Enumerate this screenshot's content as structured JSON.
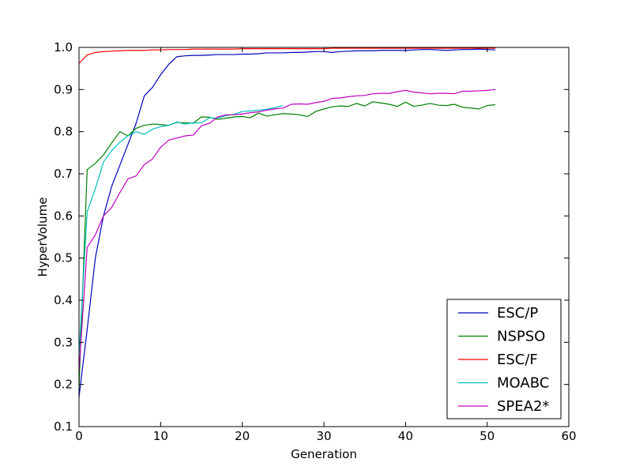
{
  "chart_data": {
    "type": "line",
    "xlabel": "Generation",
    "ylabel": "HyperVolume",
    "xlim": [
      0,
      60
    ],
    "ylim": [
      0.1,
      1.0
    ],
    "xticks": [
      "0",
      "10",
      "20",
      "30",
      "40",
      "50",
      "60"
    ],
    "yticks": [
      "0.1",
      "0.2",
      "0.3",
      "0.4",
      "0.5",
      "0.6",
      "0.7",
      "0.8",
      "0.9",
      "1.0"
    ],
    "grid": false,
    "legend_position": "lower-right",
    "series": [
      {
        "name": "ESC/P",
        "color": "#0000bf",
        "x": [
          0,
          1,
          2,
          3,
          4,
          5,
          6,
          7,
          8,
          9,
          10,
          11,
          12,
          13,
          14,
          15,
          16,
          17,
          18,
          19,
          20,
          21,
          22,
          23,
          24,
          25,
          26,
          27,
          28,
          29,
          30,
          31,
          32,
          33,
          34,
          35,
          36,
          37,
          38,
          39,
          40,
          41,
          42,
          43,
          44,
          45,
          46,
          47,
          48,
          49,
          50,
          51
        ],
        "y": [
          0.17,
          0.33,
          0.5,
          0.6,
          0.67,
          0.72,
          0.77,
          0.82,
          0.885,
          0.905,
          0.935,
          0.96,
          0.978,
          0.98,
          0.981,
          0.981,
          0.982,
          0.983,
          0.983,
          0.983,
          0.984,
          0.984,
          0.985,
          0.987,
          0.987,
          0.987,
          0.988,
          0.988,
          0.989,
          0.99,
          0.99,
          0.988,
          0.99,
          0.991,
          0.992,
          0.992,
          0.992,
          0.993,
          0.993,
          0.993,
          0.993,
          0.994,
          0.995,
          0.995,
          0.994,
          0.993,
          0.994,
          0.995,
          0.995,
          0.996,
          0.995,
          0.994
        ]
      },
      {
        "name": "NSPSO",
        "color": "#008000",
        "x": [
          0,
          1,
          2,
          3,
          4,
          5,
          6,
          7,
          8,
          9,
          10,
          11,
          12,
          13,
          14,
          15,
          16,
          17,
          18,
          19,
          20,
          21,
          22,
          23,
          24,
          25,
          26,
          27,
          28,
          29,
          30,
          31,
          32,
          33,
          34,
          35,
          36,
          37,
          38,
          39,
          40,
          41,
          42,
          43,
          44,
          45,
          46,
          47,
          48,
          49,
          50,
          51
        ],
        "y": [
          0.19,
          0.71,
          0.725,
          0.745,
          0.773,
          0.8,
          0.79,
          0.808,
          0.815,
          0.818,
          0.817,
          0.815,
          0.822,
          0.821,
          0.82,
          0.835,
          0.834,
          0.829,
          0.832,
          0.835,
          0.836,
          0.833,
          0.844,
          0.837,
          0.84,
          0.843,
          0.842,
          0.84,
          0.836,
          0.848,
          0.854,
          0.859,
          0.861,
          0.86,
          0.867,
          0.861,
          0.871,
          0.868,
          0.865,
          0.86,
          0.87,
          0.86,
          0.863,
          0.867,
          0.863,
          0.862,
          0.865,
          0.858,
          0.856,
          0.854,
          0.862,
          0.864
        ]
      },
      {
        "name": "ESC/F",
        "color": "#ff0000",
        "x": [
          0,
          1,
          2,
          3,
          4,
          5,
          6,
          7,
          8,
          9,
          10,
          11,
          12,
          13,
          14,
          15,
          16,
          17,
          18,
          19,
          20,
          21,
          22,
          23,
          24,
          25,
          26,
          27,
          28,
          29,
          30,
          31,
          32,
          33,
          34,
          35,
          36,
          37,
          38,
          39,
          40,
          41,
          42,
          43,
          44,
          45,
          46,
          47,
          48,
          49,
          50,
          51
        ],
        "y": [
          0.962,
          0.982,
          0.988,
          0.99,
          0.991,
          0.992,
          0.993,
          0.993,
          0.993,
          0.994,
          0.994,
          0.995,
          0.995,
          0.995,
          0.996,
          0.996,
          0.996,
          0.996,
          0.996,
          0.996,
          0.997,
          0.997,
          0.997,
          0.997,
          0.997,
          0.997,
          0.997,
          0.997,
          0.997,
          0.997,
          0.997,
          0.998,
          0.998,
          0.998,
          0.998,
          0.998,
          0.998,
          0.998,
          0.998,
          0.998,
          0.998,
          0.998,
          0.998,
          0.998,
          0.998,
          0.998,
          0.998,
          0.998,
          0.998,
          0.998,
          0.998,
          0.998
        ]
      },
      {
        "name": "MOABC",
        "color": "#00bfbf",
        "x": [
          0,
          1,
          2,
          3,
          4,
          5,
          6,
          7,
          8,
          9,
          10,
          11,
          12,
          13,
          14,
          15,
          16,
          17,
          18,
          19,
          20,
          21,
          22,
          23,
          24,
          25
        ],
        "y": [
          0.27,
          0.61,
          0.665,
          0.728,
          0.755,
          0.775,
          0.79,
          0.8,
          0.794,
          0.806,
          0.812,
          0.815,
          0.823,
          0.818,
          0.821,
          0.821,
          0.833,
          0.832,
          0.838,
          0.841,
          0.848,
          0.849,
          0.851,
          0.853,
          0.857,
          0.862
        ]
      },
      {
        "name": "SPEA2*",
        "color": "#bf00bf",
        "x": [
          0,
          1,
          2,
          3,
          4,
          5,
          6,
          7,
          8,
          9,
          10,
          11,
          12,
          13,
          14,
          15,
          16,
          17,
          18,
          19,
          20,
          21,
          22,
          23,
          24,
          25,
          26,
          27,
          28,
          29,
          30,
          31,
          32,
          33,
          34,
          35,
          36,
          37,
          38,
          39,
          40,
          41,
          42,
          43,
          44,
          45,
          46,
          47,
          48,
          49,
          50,
          51
        ],
        "y": [
          0.23,
          0.525,
          0.555,
          0.6,
          0.62,
          0.655,
          0.688,
          0.695,
          0.722,
          0.735,
          0.763,
          0.78,
          0.785,
          0.79,
          0.792,
          0.814,
          0.82,
          0.835,
          0.84,
          0.84,
          0.842,
          0.845,
          0.847,
          0.851,
          0.854,
          0.856,
          0.865,
          0.866,
          0.865,
          0.869,
          0.872,
          0.879,
          0.88,
          0.883,
          0.885,
          0.886,
          0.89,
          0.891,
          0.891,
          0.895,
          0.898,
          0.894,
          0.892,
          0.89,
          0.891,
          0.891,
          0.89,
          0.896,
          0.896,
          0.897,
          0.898,
          0.9
        ]
      }
    ]
  }
}
